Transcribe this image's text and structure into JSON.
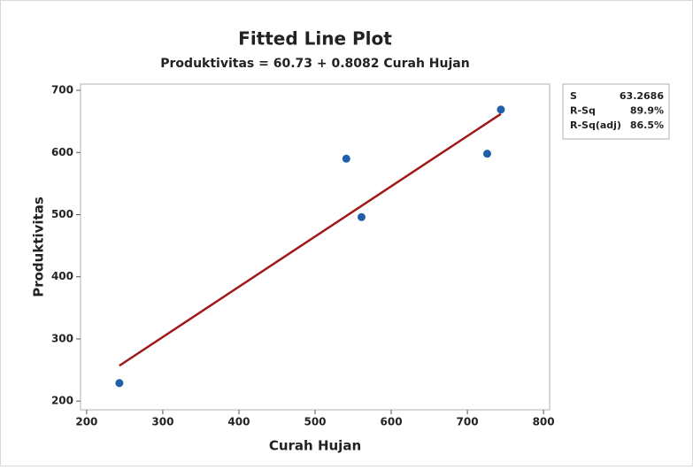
{
  "chart_data": {
    "type": "scatter",
    "title": "Fitted Line Plot",
    "subtitle": "Produktivitas = 60.73 + 0.8082 Curah Hujan",
    "x_label": "Curah Hujan",
    "y_label": "Produktivitas",
    "x": [
      243,
      541,
      561,
      726,
      744
    ],
    "values": [
      229,
      590,
      496,
      598,
      669
    ],
    "color": "#1f5fa8",
    "fit_line": {
      "x": [
        243,
        744
      ],
      "y": [
        257,
        662
      ],
      "color": "#a01818"
    },
    "xlim": [
      192,
      808
    ],
    "xticks": [
      200,
      300,
      400,
      500,
      600,
      700,
      800
    ],
    "ylim": [
      186,
      710
    ],
    "yticks": [
      200,
      300,
      400,
      500,
      600,
      700
    ],
    "grid": false,
    "stats": [
      {
        "label": "S",
        "value": "63.2686"
      },
      {
        "label": "R-Sq",
        "value": "89.9%"
      },
      {
        "label": "R-Sq(adj)",
        "value": "86.5%"
      }
    ]
  }
}
